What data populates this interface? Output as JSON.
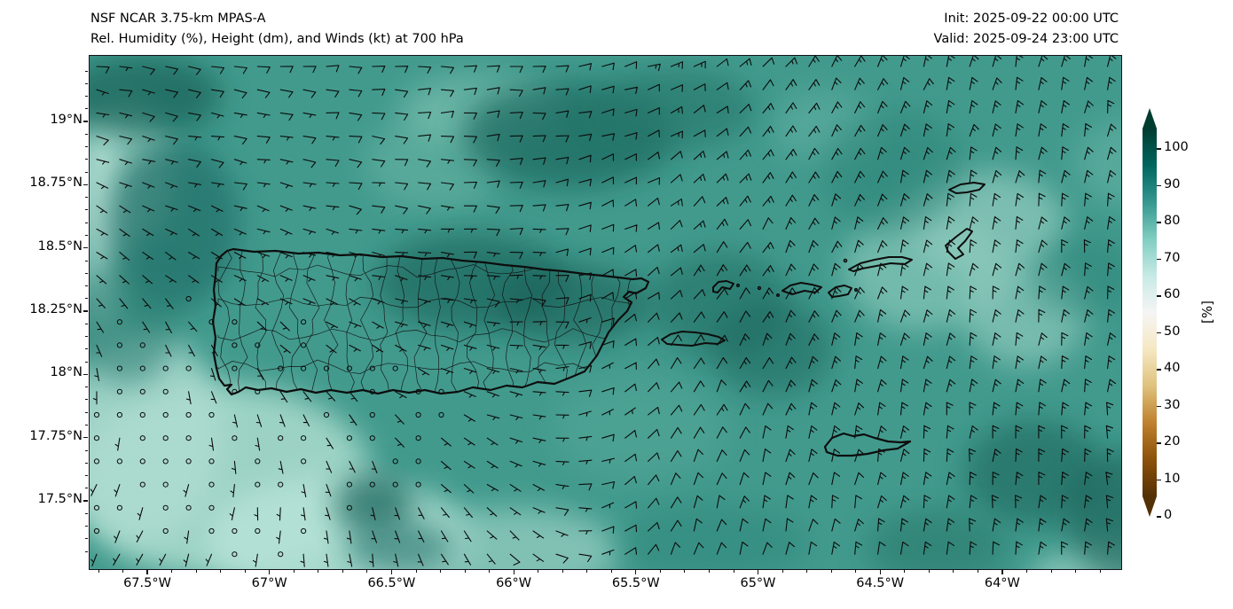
{
  "header": {
    "title_line1": "NSF NCAR 3.75-km MPAS-A",
    "title_line2": "Rel. Humidity (%), Height (dm), and Winds (kt) at 700 hPa",
    "init_time": "Init: 2025-09-22 00:00 UTC",
    "valid_time": "Valid: 2025-09-24 23:00 UTC"
  },
  "map": {
    "x_axis_ticks": [
      "67.5°W",
      "67°W",
      "66.5°W",
      "66°W",
      "65.5°W",
      "65°W",
      "64.5°W",
      "64°W"
    ],
    "y_axis_ticks": [
      "19°N",
      "18.75°N",
      "18.5°N",
      "18.25°N",
      "18°N",
      "17.75°N",
      "17.5°N"
    ],
    "landmasses": [
      "puerto-rico",
      "vieques",
      "culebra",
      "st-thomas",
      "st-john",
      "tortola",
      "virgin-gorda",
      "anegada",
      "st-croix"
    ]
  },
  "colorbar": {
    "label": "[%]",
    "tick_labels": [
      "0",
      "10",
      "20",
      "30",
      "40",
      "50",
      "60",
      "70",
      "80",
      "90",
      "100"
    ],
    "stops": [
      {
        "value": 0,
        "color": "#543005"
      },
      {
        "value": 10,
        "color": "#8c510a"
      },
      {
        "value": 20,
        "color": "#bf812d"
      },
      {
        "value": 30,
        "color": "#dfc27d"
      },
      {
        "value": 40,
        "color": "#f6e8c3"
      },
      {
        "value": 50,
        "color": "#f5f5f5"
      },
      {
        "value": 60,
        "color": "#c7eae5"
      },
      {
        "value": 70,
        "color": "#80cdc1"
      },
      {
        "value": 80,
        "color": "#35978f"
      },
      {
        "value": 90,
        "color": "#01665e"
      },
      {
        "value": 100,
        "color": "#003c30"
      }
    ]
  },
  "chart_data": {
    "type": "heatmap",
    "field": "Relative Humidity",
    "units": "%",
    "level": "700 hPa",
    "overlays": [
      "wind barbs (kt)",
      "height (dm)"
    ],
    "colorbar_ticks": [
      0,
      10,
      20,
      30,
      40,
      50,
      60,
      70,
      80,
      90,
      100
    ],
    "colorbar_range": [
      0,
      100
    ],
    "x_ticks_deg_west": [
      67.5,
      67.0,
      66.5,
      66.0,
      65.5,
      65.0,
      64.5,
      64.0
    ],
    "y_ticks_deg_north": [
      19.0,
      18.75,
      18.5,
      18.25,
      18.0,
      17.75,
      17.5
    ],
    "legend_position": "right",
    "displayed_field_range_estimate_pct": [
      55,
      100
    ]
  }
}
